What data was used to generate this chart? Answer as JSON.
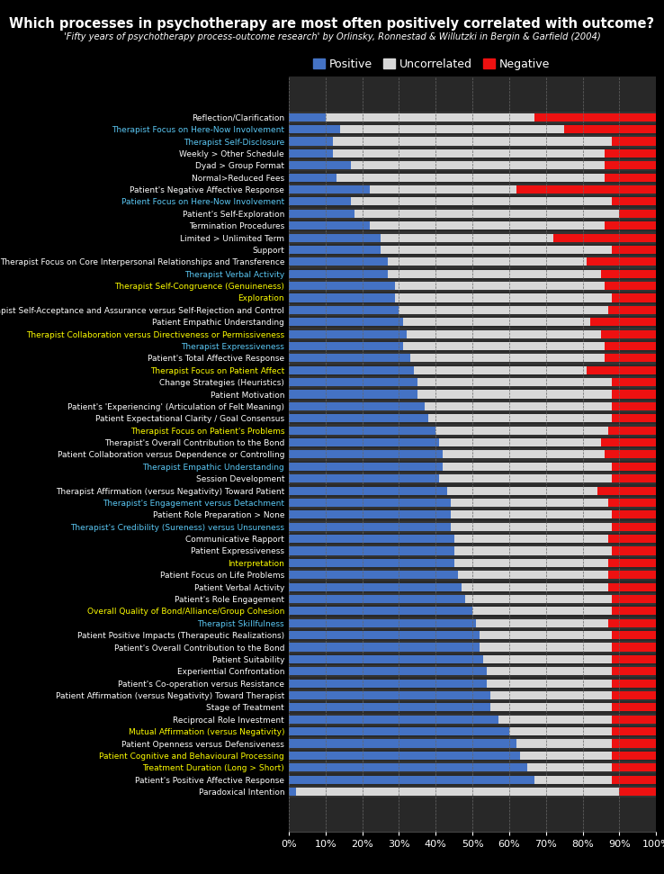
{
  "title": "Which processes in psychotherapy are most often positively correlated with outcome?",
  "subtitle": "'Fifty years of psychotherapy process-outcome research' by Orlinsky, Ronnestad & Willutzki in Bergin & Garfield (2004)",
  "bg_color": "#000000",
  "positive_color": "#4472C4",
  "uncorrelated_color": "#D8D8D8",
  "negative_color": "#EE1111",
  "categories": [
    "Reflection/Clarification",
    "Therapist Focus on Here-Now Involvement",
    "Therapist Self-Disclosure",
    "Weekly > Other Schedule",
    "Dyad > Group Format",
    "Normal>Reduced Fees",
    "Patient's Negative Affective Response",
    "Patient Focus on Here-Now Involvement",
    "Patient's Self-Exploration",
    "Termination Procedures",
    "Limited > Unlimited Term",
    "Support",
    "Therapist Focus on Core Interpersonal Relationships and Transference",
    "Therapist Verbal Activity",
    "Therapist Self-Congruence (Genuineness)",
    "Exploration",
    "Therapist Self-Acceptance and Assurance versus Self-Rejection and Control",
    "Patient Empathic Understanding",
    "Therapist Collaboration versus Directiveness or Permissiveness",
    "Therapist Expressiveness",
    "Patient's Total Affective Response",
    "Therapist Focus on Patient Affect",
    "Change Strategies (Heuristics)",
    "Patient Motivation",
    "Patient's 'Experiencing' (Articulation of Felt Meaning)",
    "Patient Expectational Clarity / Goal Consensus",
    "Therapist Focus on Patient's Problems",
    "Therapist's Overall Contribution to the Bond",
    "Patient Collaboration versus Dependence or Controlling",
    "Therapist Empathic Understanding",
    "Session Development",
    "Therapist Affirmation (versus Negativity) Toward Patient",
    "Therapist's Engagement versus Detachment",
    "Patient Role Preparation > None",
    "Therapist's Credibility (Sureness) versus Unsureness",
    "Communicative Rapport",
    "Patient Expressiveness",
    "Interpretation",
    "Patient Focus on Life Problems",
    "Patient Verbal Activity",
    "Patient's Role Engagement",
    "Overall Quality of Bond/Alliance/Group Cohesion",
    "Therapist Skillfulness",
    "Patient Positive Impacts (Therapeutic Realizations)",
    "Patient's Overall Contribution to the Bond",
    "Patient Suitability",
    "Experiential Confrontation",
    "Patient's Co-operation versus Resistance",
    "Patient Affirmation (versus Negativity) Toward Therapist",
    "Stage of Treatment",
    "Reciprocal Role Investment",
    "Mutual Affirmation (versus Negativity)",
    "Patient Openness versus Defensiveness",
    "Patient Cognitive and Behavioural Processing",
    "Treatment Duration (Long > Short)",
    "Patient's Positive Affective Response",
    "Paradoxical Intention"
  ],
  "label_colors": [
    "#FFFFFF",
    "#5BC8F5",
    "#5BC8F5",
    "#FFFFFF",
    "#FFFFFF",
    "#FFFFFF",
    "#FFFFFF",
    "#5BC8F5",
    "#FFFFFF",
    "#FFFFFF",
    "#FFFFFF",
    "#FFFFFF",
    "#FFFFFF",
    "#5BC8F5",
    "#FFFF00",
    "#FFFF00",
    "#FFFFFF",
    "#FFFFFF",
    "#FFFF00",
    "#5BC8F5",
    "#FFFFFF",
    "#FFFF00",
    "#FFFFFF",
    "#FFFFFF",
    "#FFFFFF",
    "#FFFFFF",
    "#FFFF00",
    "#FFFFFF",
    "#FFFFFF",
    "#5BC8F5",
    "#FFFFFF",
    "#FFFFFF",
    "#5BC8F5",
    "#FFFFFF",
    "#5BC8F5",
    "#FFFFFF",
    "#FFFFFF",
    "#FFFF00",
    "#FFFFFF",
    "#FFFFFF",
    "#FFFFFF",
    "#FFFF00",
    "#5BC8F5",
    "#FFFFFF",
    "#FFFFFF",
    "#FFFFFF",
    "#FFFFFF",
    "#FFFFFF",
    "#FFFFFF",
    "#FFFFFF",
    "#FFFFFF",
    "#FFFF00",
    "#FFFFFF",
    "#FFFF00",
    "#FFFF00",
    "#FFFFFF",
    "#FFFFFF"
  ],
  "positive": [
    10,
    14,
    12,
    12,
    17,
    13,
    22,
    17,
    18,
    22,
    25,
    25,
    27,
    27,
    29,
    29,
    30,
    31,
    32,
    31,
    33,
    34,
    35,
    35,
    37,
    38,
    40,
    41,
    42,
    42,
    41,
    43,
    44,
    44,
    44,
    45,
    45,
    45,
    46,
    47,
    48,
    50,
    51,
    52,
    52,
    53,
    54,
    54,
    55,
    55,
    57,
    60,
    62,
    63,
    65,
    67,
    2
  ],
  "uncorrelated": [
    57,
    61,
    76,
    74,
    69,
    73,
    40,
    71,
    72,
    64,
    47,
    63,
    54,
    58,
    57,
    59,
    57,
    51,
    53,
    55,
    53,
    47,
    53,
    53,
    51,
    50,
    47,
    44,
    44,
    46,
    47,
    41,
    43,
    44,
    44,
    42,
    43,
    42,
    41,
    40,
    40,
    38,
    36,
    36,
    36,
    35,
    34,
    34,
    33,
    33,
    31,
    28,
    26,
    25,
    23,
    21,
    88
  ],
  "negative": [
    33,
    25,
    12,
    14,
    14,
    14,
    38,
    12,
    10,
    14,
    28,
    12,
    19,
    15,
    14,
    12,
    13,
    18,
    15,
    14,
    14,
    19,
    12,
    12,
    12,
    12,
    13,
    15,
    14,
    12,
    12,
    16,
    13,
    12,
    12,
    13,
    12,
    13,
    13,
    13,
    12,
    12,
    13,
    12,
    12,
    12,
    12,
    12,
    12,
    12,
    12,
    12,
    12,
    12,
    12,
    12,
    10
  ]
}
